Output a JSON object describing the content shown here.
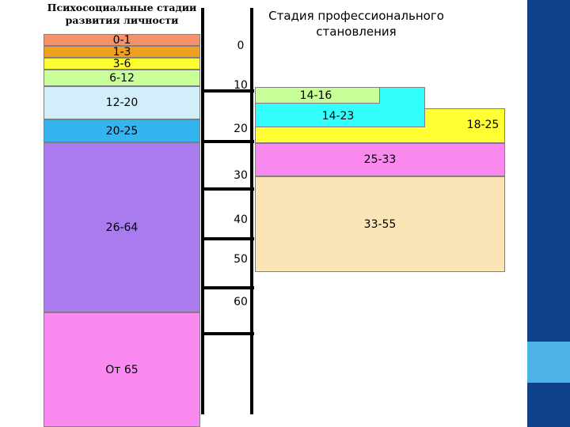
{
  "left_title": "Психосоциальные стадии развития личности",
  "right_title": "Стадия профессионального становления",
  "psychosocial_stages": [
    {
      "label": "0-1",
      "color": "#f4926b"
    },
    {
      "label": "1-3",
      "color": "#f0a01e"
    },
    {
      "label": "3-6",
      "color": "#ffff33"
    },
    {
      "label": "6-12",
      "color": "#c8ff99"
    },
    {
      "label": "12-20",
      "color": "#d2eefb"
    },
    {
      "label": "20-25",
      "color": "#36b4f0"
    },
    {
      "label": "26-64",
      "color": "#a97bee"
    },
    {
      "label": "От 65",
      "color": "#fb8af0"
    }
  ],
  "age_scale": [
    "0",
    "10",
    "20",
    "30",
    "40",
    "50",
    "60"
  ],
  "professional_stages": [
    {
      "label": "14-16",
      "color": "#c8ff99"
    },
    {
      "label": "14-23",
      "color": "#33ffff"
    },
    {
      "label": "18-25",
      "color": "#ffff33"
    },
    {
      "label": "25-33",
      "color": "#fb8af0"
    },
    {
      "label": "33-55",
      "color": "#fbe4b5"
    }
  ],
  "side_stripe_colors": {
    "dark": "#10428b",
    "light": "#4db3e6"
  }
}
